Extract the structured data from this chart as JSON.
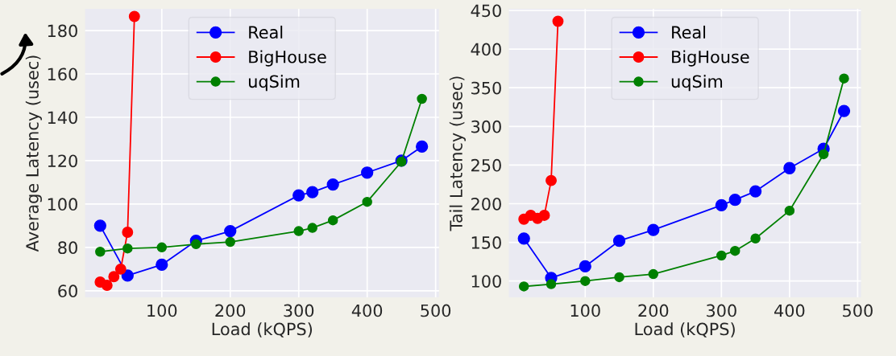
{
  "chart_data": [
    {
      "type": "line",
      "xlabel": "Load (kQPS)",
      "ylabel": "Average Latency (usec)",
      "xlim": [
        -12,
        505
      ],
      "ylim": [
        57,
        190
      ],
      "xticks": [
        100,
        200,
        300,
        400,
        500
      ],
      "yticks": [
        60,
        80,
        100,
        120,
        140,
        160,
        180
      ],
      "grid": true,
      "legend": "top center",
      "marker": "circle",
      "line_style": "solid",
      "series": [
        {
          "name": "Real",
          "color": "#0000ff",
          "x": [
            10,
            50,
            100,
            150,
            200,
            300,
            320,
            350,
            400,
            450,
            480
          ],
          "values": [
            90,
            67,
            72,
            83,
            87.5,
            104,
            105.5,
            109,
            114.5,
            120,
            126.5
          ]
        },
        {
          "name": "BigHouse",
          "color": "#ff0000",
          "x": [
            10,
            20,
            30,
            40,
            50,
            60
          ],
          "values": [
            64,
            62.5,
            66.5,
            70,
            87,
            186.5
          ]
        },
        {
          "name": "uqSim",
          "color": "#008000",
          "x": [
            10,
            50,
            100,
            150,
            200,
            300,
            320,
            350,
            400,
            450,
            480
          ],
          "values": [
            78,
            79.5,
            80,
            81.5,
            82.5,
            87.5,
            89,
            92.5,
            101,
            119.5,
            148.5
          ]
        }
      ]
    },
    {
      "type": "line",
      "xlabel": "Load (kQPS)",
      "ylabel": "Tail Latency (usec)",
      "xlim": [
        -12,
        505
      ],
      "ylim": [
        79,
        452
      ],
      "xticks": [
        100,
        200,
        300,
        400,
        500
      ],
      "yticks": [
        100,
        150,
        200,
        250,
        300,
        350,
        400,
        450
      ],
      "grid": true,
      "legend": "top center",
      "marker": "circle",
      "line_style": "solid",
      "series": [
        {
          "name": "Real",
          "color": "#0000ff",
          "x": [
            10,
            50,
            100,
            150,
            200,
            300,
            320,
            350,
            400,
            450,
            480
          ],
          "values": [
            155,
            104,
            119,
            152,
            166,
            198,
            205,
            216,
            246,
            271,
            320
          ]
        },
        {
          "name": "BigHouse",
          "color": "#ff0000",
          "x": [
            10,
            20,
            30,
            40,
            50,
            60
          ],
          "values": [
            180,
            185,
            181,
            185,
            230,
            436
          ]
        },
        {
          "name": "uqSim",
          "color": "#008000",
          "x": [
            10,
            50,
            100,
            150,
            200,
            300,
            320,
            350,
            400,
            450,
            480
          ],
          "values": [
            93,
            96,
            100,
            105,
            109,
            133,
            139,
            155,
            191,
            264,
            362
          ]
        }
      ]
    }
  ]
}
